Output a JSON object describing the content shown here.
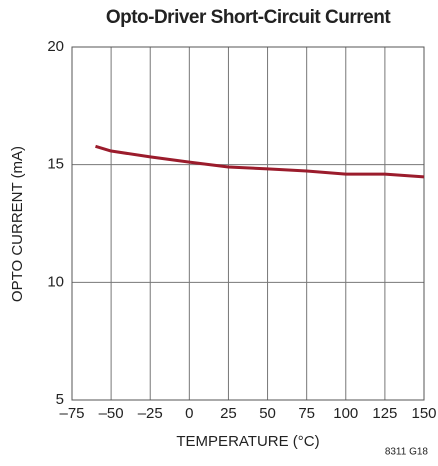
{
  "chart_data": {
    "type": "line",
    "title": "Opto-Driver Short-Circuit Current",
    "xlabel": "TEMPERATURE (°C)",
    "ylabel": "OPTO CURRENT (mA)",
    "note": "8311 G18",
    "x": [
      -60,
      -50,
      -25,
      0,
      25,
      50,
      75,
      100,
      125,
      150
    ],
    "series": [
      {
        "name": "Opto Current",
        "color": "#9b1c2c",
        "values": [
          15.78,
          15.58,
          15.33,
          15.11,
          14.9,
          14.82,
          14.73,
          14.6,
          14.6,
          14.48
        ]
      }
    ],
    "xlim": [
      -75,
      150
    ],
    "xticks": [
      {
        "value": -75,
        "label": "–75"
      },
      {
        "value": -50,
        "label": "–50"
      },
      {
        "value": -25,
        "label": "–25"
      },
      0,
      25,
      50,
      75,
      100,
      125,
      150
    ],
    "ylim": [
      5,
      20
    ],
    "yticks": [
      5,
      10,
      15,
      20
    ],
    "grid": true
  }
}
